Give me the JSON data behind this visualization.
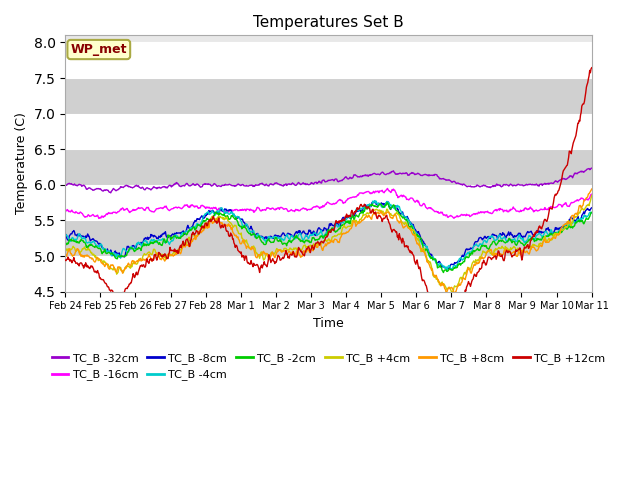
{
  "title": "Temperatures Set B",
  "xlabel": "Time",
  "ylabel": "Temperature (C)",
  "ylim": [
    4.5,
    8.1
  ],
  "series_colors": {
    "TC_B -32cm": "#9900cc",
    "TC_B -16cm": "#ff00ff",
    "TC_B -8cm": "#0000cc",
    "TC_B -4cm": "#00cccc",
    "TC_B -2cm": "#00cc00",
    "TC_B +4cm": "#cccc00",
    "TC_B +8cm": "#ff9900",
    "TC_B +12cm": "#cc0000"
  },
  "wp_met_color": "#880000",
  "wp_met_bg": "#ffffcc",
  "wp_met_border": "#aaaa44",
  "n_points": 800,
  "axes_bg": "#e8e8e8",
  "band_color": "#d0d0d0",
  "yticks": [
    4.5,
    5.0,
    5.5,
    6.0,
    6.5,
    7.0,
    7.5,
    8.0
  ],
  "tick_labels_x": [
    "Feb 24",
    "Feb 25",
    "Feb 26",
    "Feb 27",
    "Feb 28",
    "Mar 1",
    "Mar 2",
    "Mar 3",
    "Mar 4",
    "Mar 5",
    "Mar 6",
    "Mar 7",
    "Mar 8",
    "Mar 9",
    "Mar 10",
    "Mar 11"
  ]
}
